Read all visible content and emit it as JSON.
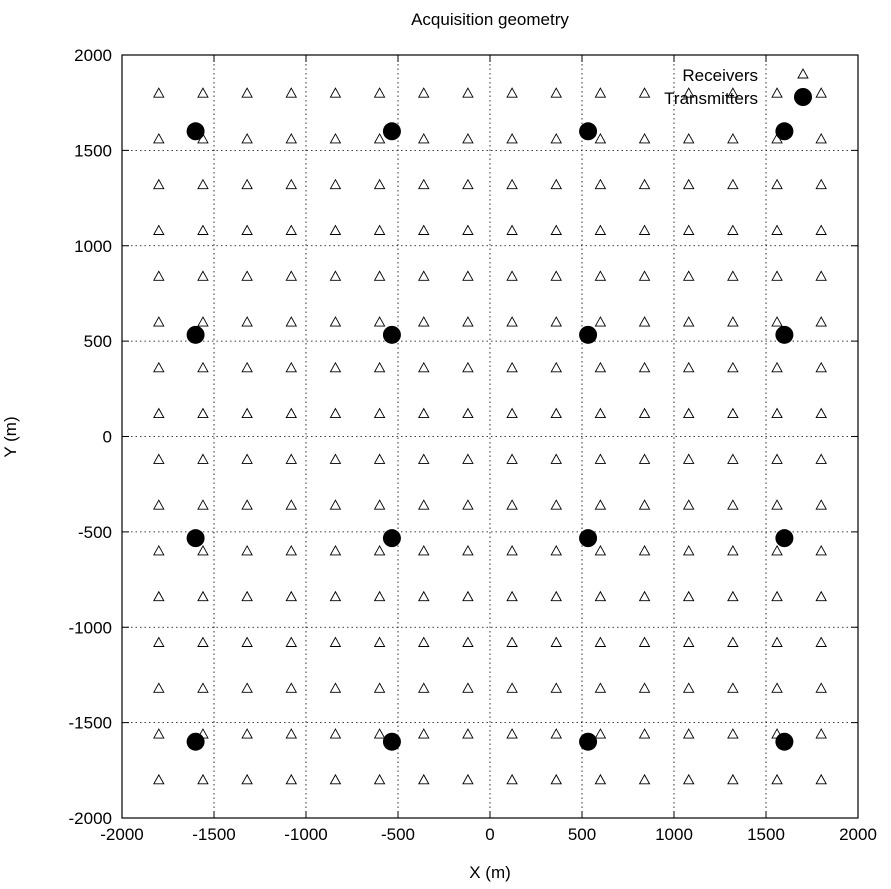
{
  "chart_data": {
    "type": "scatter",
    "title": "Acquisition geometry",
    "xlabel": "X (m)",
    "ylabel": "Y (m)",
    "xlim": [
      -2000,
      2000
    ],
    "ylim": [
      -2000,
      2000
    ],
    "xticks": [
      -2000,
      -1500,
      -1000,
      -500,
      0,
      500,
      1000,
      1500,
      2000
    ],
    "yticks": [
      -2000,
      -1500,
      -1000,
      -500,
      0,
      500,
      1000,
      1500,
      2000
    ],
    "grid": true,
    "legend_position": "top-right",
    "series": [
      {
        "name": "Receivers",
        "marker": "triangle-open",
        "color": "#000000",
        "x_values": [
          -1800,
          -1560,
          -1320,
          -1080,
          -840,
          -600,
          -360,
          -120,
          120,
          360,
          600,
          840,
          1080,
          1320,
          1560,
          1800
        ],
        "y_values": [
          -1800,
          -1560,
          -1320,
          -1080,
          -840,
          -600,
          -360,
          -120,
          120,
          360,
          600,
          840,
          1080,
          1320,
          1560,
          1800
        ],
        "layout": "grid"
      },
      {
        "name": "Transmitters",
        "marker": "circle-filled",
        "color": "#000000",
        "x_values": [
          -1600,
          -533,
          533,
          1600
        ],
        "y_values": [
          -1600,
          -533,
          533,
          1600
        ],
        "layout": "grid"
      }
    ]
  }
}
